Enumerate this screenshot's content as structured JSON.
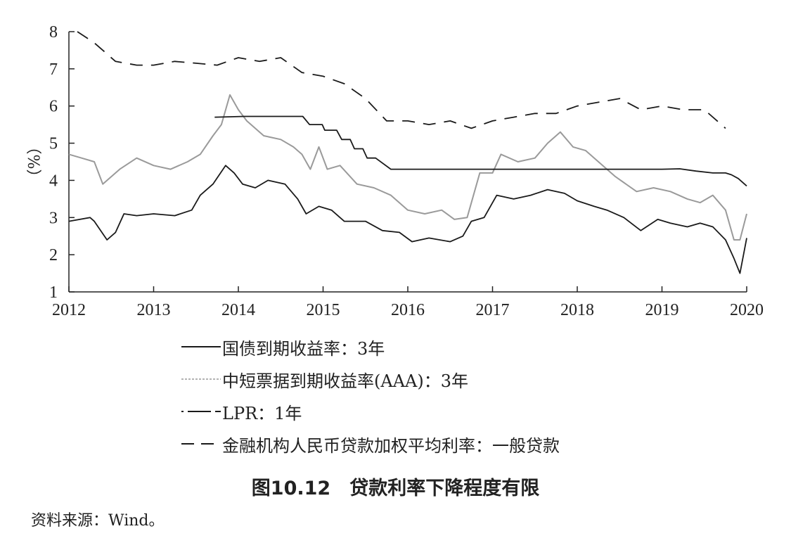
{
  "chart_data": {
    "type": "line",
    "title": "",
    "ylabel": "（%）",
    "xlabel": "",
    "xlim": [
      2012,
      2020
    ],
    "ylim": [
      1,
      8
    ],
    "x_ticks": [
      "2012",
      "2013",
      "2014",
      "2015",
      "2016",
      "2017",
      "2018",
      "2019",
      "2020"
    ],
    "y_ticks": [
      "1",
      "2",
      "3",
      "4",
      "5",
      "6",
      "7",
      "8"
    ],
    "grid": false,
    "legend_position": "bottom",
    "series": [
      {
        "name": "国债到期收益率：3年",
        "color": "#1a1a1a",
        "style": "solid",
        "x": [
          2012.0,
          2012.25,
          2012.3,
          2012.45,
          2012.55,
          2012.65,
          2012.8,
          2013.0,
          2013.25,
          2013.45,
          2013.55,
          2013.7,
          2013.85,
          2013.95,
          2014.05,
          2014.2,
          2014.35,
          2014.55,
          2014.7,
          2014.8,
          2014.95,
          2015.1,
          2015.25,
          2015.5,
          2015.7,
          2015.9,
          2016.05,
          2016.25,
          2016.5,
          2016.65,
          2016.75,
          2016.9,
          2017.05,
          2017.25,
          2017.45,
          2017.65,
          2017.85,
          2018.0,
          2018.2,
          2018.35,
          2018.55,
          2018.75,
          2018.95,
          2019.1,
          2019.3,
          2019.45,
          2019.6,
          2019.75,
          2019.85,
          2019.92,
          2020.0
        ],
        "y": [
          2.9,
          3.0,
          2.9,
          2.4,
          2.6,
          3.1,
          3.05,
          3.1,
          3.05,
          3.2,
          3.6,
          3.9,
          4.4,
          4.2,
          3.9,
          3.8,
          4.0,
          3.9,
          3.5,
          3.1,
          3.3,
          3.2,
          2.9,
          2.9,
          2.65,
          2.6,
          2.35,
          2.45,
          2.35,
          2.5,
          2.9,
          3.0,
          3.6,
          3.5,
          3.6,
          3.75,
          3.65,
          3.45,
          3.3,
          3.2,
          3.0,
          2.65,
          2.95,
          2.85,
          2.75,
          2.85,
          2.75,
          2.4,
          1.9,
          1.5,
          2.45
        ]
      },
      {
        "name": "中短票据到期收益率(AAA)：3年",
        "color": "#9a9a9a",
        "style": "solid",
        "x": [
          2012.0,
          2012.15,
          2012.3,
          2012.4,
          2012.6,
          2012.8,
          2013.0,
          2013.2,
          2013.4,
          2013.55,
          2013.7,
          2013.8,
          2013.9,
          2014.0,
          2014.1,
          2014.3,
          2014.5,
          2014.65,
          2014.75,
          2014.85,
          2014.95,
          2015.05,
          2015.2,
          2015.4,
          2015.6,
          2015.8,
          2016.0,
          2016.2,
          2016.4,
          2016.55,
          2016.7,
          2016.85,
          2017.0,
          2017.1,
          2017.3,
          2017.5,
          2017.65,
          2017.8,
          2017.95,
          2018.1,
          2018.25,
          2018.45,
          2018.7,
          2018.9,
          2019.1,
          2019.3,
          2019.45,
          2019.6,
          2019.75,
          2019.85,
          2019.92,
          2020.0
        ],
        "y": [
          4.7,
          4.6,
          4.5,
          3.9,
          4.3,
          4.6,
          4.4,
          4.3,
          4.5,
          4.7,
          5.2,
          5.5,
          6.3,
          5.9,
          5.6,
          5.2,
          5.1,
          4.9,
          4.7,
          4.3,
          4.9,
          4.3,
          4.4,
          3.9,
          3.8,
          3.6,
          3.2,
          3.1,
          3.2,
          2.95,
          3.0,
          4.2,
          4.2,
          4.7,
          4.5,
          4.6,
          5.0,
          5.3,
          4.9,
          4.8,
          4.5,
          4.1,
          3.7,
          3.8,
          3.7,
          3.5,
          3.4,
          3.6,
          3.2,
          2.4,
          2.4,
          3.1
        ]
      },
      {
        "name": "LPR：1年",
        "color": "#1a1a1a",
        "style": "dashdot",
        "x": [
          2013.72,
          2014.07,
          2014.58,
          2014.76,
          2014.84,
          2014.99,
          2015.02,
          2015.16,
          2015.22,
          2015.32,
          2015.37,
          2015.47,
          2015.52,
          2015.57,
          2015.62,
          2015.8,
          2016.0,
          2016.5,
          2017.0,
          2017.5,
          2018.0,
          2018.5,
          2019.0,
          2019.21,
          2019.4,
          2019.6,
          2019.75,
          2019.82,
          2019.9,
          2020.0
        ],
        "y": [
          5.7,
          5.72,
          5.72,
          5.72,
          5.5,
          5.5,
          5.35,
          5.35,
          5.1,
          5.1,
          4.85,
          4.85,
          4.6,
          4.6,
          4.6,
          4.3,
          4.3,
          4.3,
          4.3,
          4.3,
          4.3,
          4.3,
          4.3,
          4.31,
          4.25,
          4.2,
          4.2,
          4.15,
          4.05,
          3.85
        ]
      },
      {
        "name": "金融机构人民币贷款加权平均利率：一般贷款",
        "color": "#1a1a1a",
        "style": "dashed",
        "x": [
          2012.1,
          2012.3,
          2012.55,
          2012.8,
          2013.0,
          2013.25,
          2013.5,
          2013.75,
          2014.0,
          2014.25,
          2014.5,
          2014.75,
          2015.0,
          2015.25,
          2015.5,
          2015.75,
          2016.0,
          2016.25,
          2016.5,
          2016.75,
          2017.0,
          2017.25,
          2017.5,
          2017.75,
          2018.0,
          2018.25,
          2018.5,
          2018.75,
          2019.0,
          2019.25,
          2019.5,
          2019.75
        ],
        "y": [
          8.0,
          7.7,
          7.2,
          7.1,
          7.1,
          7.2,
          7.15,
          7.1,
          7.3,
          7.2,
          7.3,
          6.9,
          6.8,
          6.6,
          6.2,
          5.6,
          5.6,
          5.5,
          5.6,
          5.4,
          5.6,
          5.7,
          5.8,
          5.8,
          6.0,
          6.1,
          6.2,
          5.9,
          6.0,
          5.9,
          5.9,
          5.4
        ]
      }
    ]
  },
  "legend": {
    "items": [
      {
        "label": "国债到期收益率：3年"
      },
      {
        "label": "中短票据到期收益率(AAA)：3年"
      },
      {
        "label": "LPR：1年"
      },
      {
        "label": "金融机构人民币贷款加权平均利率：一般贷款"
      }
    ]
  },
  "caption": "图10.12　贷款利率下降程度有限",
  "source": "资料来源：Wind。"
}
